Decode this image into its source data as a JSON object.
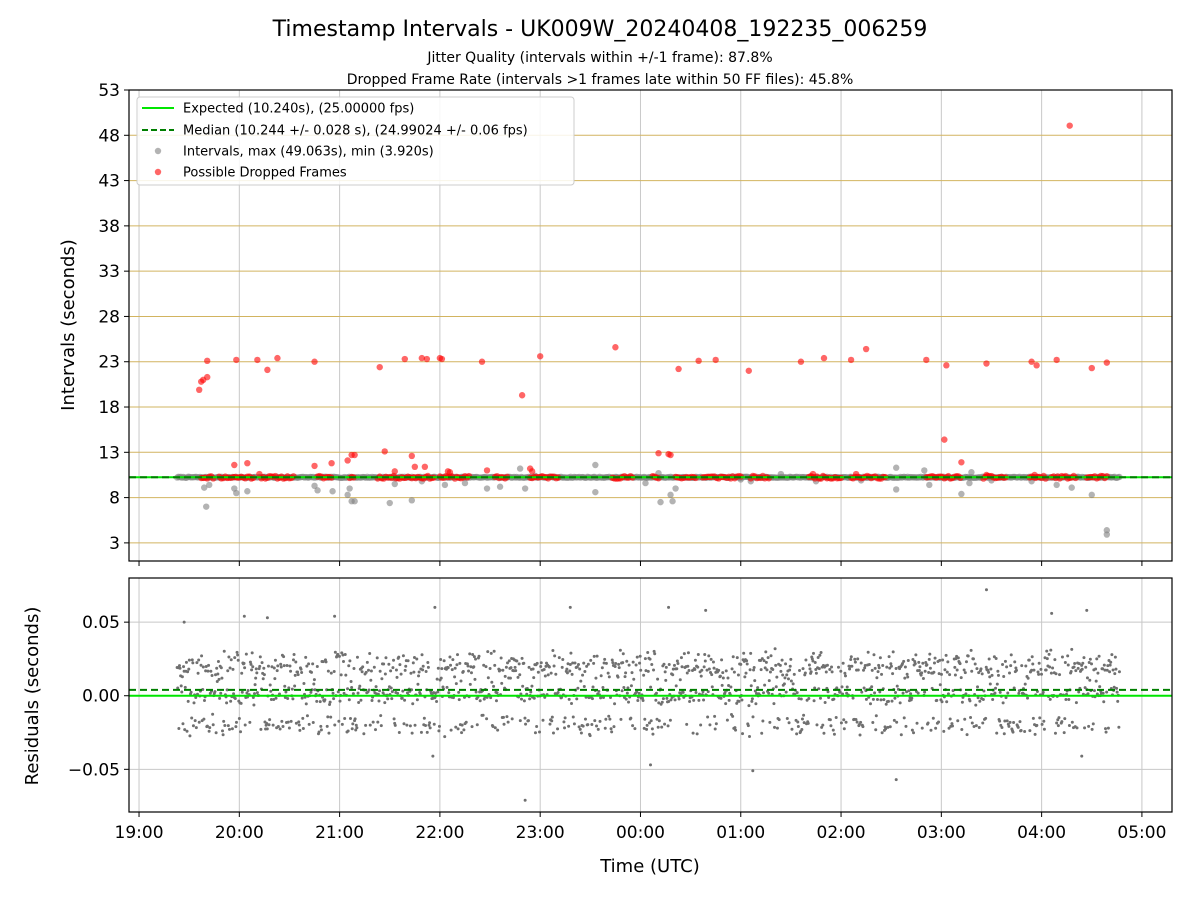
{
  "title": "Timestamp Intervals - UK009W_20240408_192235_006259",
  "subtitle1": "Jitter Quality (intervals within +/-1 frame): 87.8%",
  "subtitle2": "Dropped Frame Rate (intervals >1 frames late within 50 FF files): 45.8%",
  "colors": {
    "expected": "#00e600",
    "median": "#007f00",
    "intervals": "#808080",
    "dropped": "#ff0000",
    "h_grid": "#d2b460",
    "v_grid": "#c8c8c8"
  },
  "chart_data": [
    {
      "type": "scatter",
      "ylabel": "Intervals (seconds)",
      "ylim": [
        1,
        53
      ],
      "y_ticks": [
        3,
        8,
        13,
        18,
        23,
        28,
        33,
        38,
        43,
        48,
        53
      ],
      "x_ticks": [
        "19:00",
        "20:00",
        "21:00",
        "22:00",
        "23:00",
        "00:00",
        "01:00",
        "02:00",
        "03:00",
        "04:00",
        "05:00"
      ],
      "xlim_hours": [
        18.9,
        29.3
      ],
      "grid": true,
      "legend_position": "upper-left",
      "legend": [
        "Expected (10.240s), (25.00000 fps)",
        "Median (10.244 +/- 0.028 s), (24.99024 +/- 0.06 fps)",
        "Intervals, max (49.063s), min (3.920s)",
        "Possible Dropped Frames"
      ],
      "expected_value": 10.24,
      "median_value": 10.244,
      "series": [
        {
          "name": "Intervals, max (49.063s), min (3.920s)",
          "x_range_hours": [
            19.38,
            28.78
          ],
          "baseline": 10.24,
          "points": [
            [
              19.65,
              9.1
            ],
            [
              19.67,
              7.0
            ],
            [
              19.7,
              9.4
            ],
            [
              19.95,
              9.0
            ],
            [
              19.97,
              8.5
            ],
            [
              20.08,
              8.7
            ],
            [
              20.75,
              9.3
            ],
            [
              20.78,
              8.8
            ],
            [
              20.93,
              8.7
            ],
            [
              21.08,
              8.3
            ],
            [
              21.1,
              9.0
            ],
            [
              21.12,
              7.6
            ],
            [
              21.15,
              7.6
            ],
            [
              21.5,
              7.4
            ],
            [
              21.55,
              9.5
            ],
            [
              21.72,
              7.7
            ],
            [
              21.82,
              9.8
            ],
            [
              22.05,
              9.4
            ],
            [
              22.25,
              9.6
            ],
            [
              22.47,
              9.0
            ],
            [
              22.6,
              9.2
            ],
            [
              22.8,
              11.2
            ],
            [
              22.85,
              9.0
            ],
            [
              22.95,
              10.4
            ],
            [
              23.55,
              11.6
            ],
            [
              23.55,
              8.6
            ],
            [
              24.05,
              9.6
            ],
            [
              24.18,
              10.7
            ],
            [
              24.2,
              7.5
            ],
            [
              24.3,
              8.3
            ],
            [
              24.32,
              7.6
            ],
            [
              24.35,
              9.0
            ],
            [
              25.0,
              10.0
            ],
            [
              25.1,
              9.8
            ],
            [
              25.4,
              10.6
            ],
            [
              25.75,
              9.8
            ],
            [
              26.2,
              9.9
            ],
            [
              26.55,
              11.3
            ],
            [
              26.55,
              8.9
            ],
            [
              26.83,
              11.0
            ],
            [
              26.88,
              9.4
            ],
            [
              27.2,
              8.4
            ],
            [
              27.28,
              9.6
            ],
            [
              27.3,
              10.8
            ],
            [
              27.5,
              9.9
            ],
            [
              27.9,
              9.8
            ],
            [
              28.15,
              9.4
            ],
            [
              28.3,
              9.1
            ],
            [
              28.5,
              8.3
            ],
            [
              28.65,
              4.4
            ],
            [
              28.65,
              3.92
            ]
          ]
        },
        {
          "name": "Possible Dropped Frames",
          "points": [
            [
              19.6,
              19.9
            ],
            [
              19.62,
              20.8
            ],
            [
              19.64,
              21.0
            ],
            [
              19.68,
              21.3
            ],
            [
              19.68,
              23.1
            ],
            [
              19.95,
              11.6
            ],
            [
              19.97,
              23.2
            ],
            [
              20.08,
              11.8
            ],
            [
              20.18,
              23.2
            ],
            [
              20.2,
              10.6
            ],
            [
              20.28,
              22.1
            ],
            [
              20.38,
              23.4
            ],
            [
              20.75,
              23.0
            ],
            [
              20.75,
              11.5
            ],
            [
              20.92,
              11.8
            ],
            [
              21.08,
              12.1
            ],
            [
              21.12,
              12.7
            ],
            [
              21.15,
              12.7
            ],
            [
              21.4,
              22.4
            ],
            [
              21.45,
              13.1
            ],
            [
              21.55,
              10.9
            ],
            [
              21.65,
              23.3
            ],
            [
              21.72,
              12.6
            ],
            [
              21.75,
              11.4
            ],
            [
              21.82,
              23.4
            ],
            [
              21.85,
              11.4
            ],
            [
              21.87,
              23.3
            ],
            [
              22.0,
              23.4
            ],
            [
              22.02,
              23.3
            ],
            [
              22.08,
              10.9
            ],
            [
              22.1,
              10.8
            ],
            [
              22.42,
              23.0
            ],
            [
              22.47,
              11.0
            ],
            [
              22.82,
              19.3
            ],
            [
              22.9,
              11.2
            ],
            [
              22.92,
              10.9
            ],
            [
              23.0,
              23.6
            ],
            [
              23.75,
              24.6
            ],
            [
              24.18,
              12.9
            ],
            [
              24.28,
              12.8
            ],
            [
              24.3,
              12.7
            ],
            [
              24.38,
              22.2
            ],
            [
              24.58,
              23.1
            ],
            [
              24.75,
              23.2
            ],
            [
              25.08,
              22.0
            ],
            [
              25.6,
              23.0
            ],
            [
              25.72,
              10.6
            ],
            [
              25.83,
              23.4
            ],
            [
              26.1,
              23.2
            ],
            [
              26.15,
              10.6
            ],
            [
              26.25,
              24.4
            ],
            [
              26.85,
              23.2
            ],
            [
              27.03,
              14.4
            ],
            [
              27.05,
              22.6
            ],
            [
              27.2,
              11.9
            ],
            [
              27.45,
              22.8
            ],
            [
              27.45,
              10.5
            ],
            [
              27.9,
              23.0
            ],
            [
              27.95,
              22.6
            ],
            [
              27.93,
              10.5
            ],
            [
              28.15,
              23.2
            ],
            [
              28.28,
              49.063
            ],
            [
              28.5,
              22.3
            ],
            [
              28.65,
              22.9
            ]
          ],
          "baseline_clusters": [
            [
              19.62,
              19.75
            ],
            [
              19.8,
              20.15
            ],
            [
              20.22,
              20.55
            ],
            [
              20.78,
              20.92
            ],
            [
              21.1,
              21.15
            ],
            [
              21.38,
              21.95
            ],
            [
              22.0,
              22.12
            ],
            [
              22.15,
              22.3
            ],
            [
              22.55,
              22.68
            ],
            [
              22.9,
              23.18
            ],
            [
              23.72,
              23.92
            ],
            [
              24.12,
              24.18
            ],
            [
              24.35,
              24.55
            ],
            [
              24.62,
              25.0
            ],
            [
              25.1,
              25.28
            ],
            [
              25.68,
              26.0
            ],
            [
              26.1,
              26.45
            ],
            [
              26.85,
              27.2
            ],
            [
              27.42,
              27.65
            ],
            [
              27.88,
              28.05
            ],
            [
              28.1,
              28.35
            ],
            [
              28.45,
              28.65
            ]
          ]
        },
        {
          "name": "Expected (10.240s), (25.00000 fps)",
          "values": [
            10.24
          ]
        },
        {
          "name": "Median (10.244 +/- 0.028 s), (24.99024 +/- 0.06 fps)",
          "values": [
            10.244
          ]
        }
      ]
    },
    {
      "type": "scatter",
      "xlabel": "Time (UTC)",
      "ylabel": "Residuals (seconds)",
      "ylim": [
        -0.079,
        0.08
      ],
      "y_ticks": [
        "−0.05",
        "0.00",
        "0.05"
      ],
      "y_tick_values": [
        -0.05,
        0.0,
        0.05
      ],
      "x_ticks": [
        "19:00",
        "20:00",
        "21:00",
        "22:00",
        "23:00",
        "00:00",
        "01:00",
        "02:00",
        "03:00",
        "04:00",
        "05:00"
      ],
      "xlim_hours": [
        18.9,
        29.3
      ],
      "grid": true,
      "expected_value": 0.0,
      "median_value": 0.004,
      "series": [
        {
          "name": "Residuals",
          "x_range_hours": [
            19.38,
            28.78
          ],
          "bands": [
            {
              "center": 0.02,
              "spread": 0.012
            },
            {
              "center": 0.001,
              "spread": 0.008
            },
            {
              "center": -0.02,
              "spread": 0.008
            }
          ],
          "outliers": [
            [
              19.45,
              0.05
            ],
            [
              20.05,
              0.054
            ],
            [
              20.28,
              0.053
            ],
            [
              20.95,
              0.054
            ],
            [
              21.95,
              0.06
            ],
            [
              21.93,
              -0.041
            ],
            [
              22.85,
              -0.071
            ],
            [
              23.3,
              0.06
            ],
            [
              24.1,
              -0.047
            ],
            [
              24.28,
              0.06
            ],
            [
              24.65,
              0.058
            ],
            [
              25.12,
              -0.051
            ],
            [
              26.55,
              -0.057
            ],
            [
              27.45,
              0.072
            ],
            [
              28.1,
              0.056
            ],
            [
              28.45,
              0.058
            ],
            [
              28.4,
              -0.041
            ]
          ]
        }
      ]
    }
  ]
}
